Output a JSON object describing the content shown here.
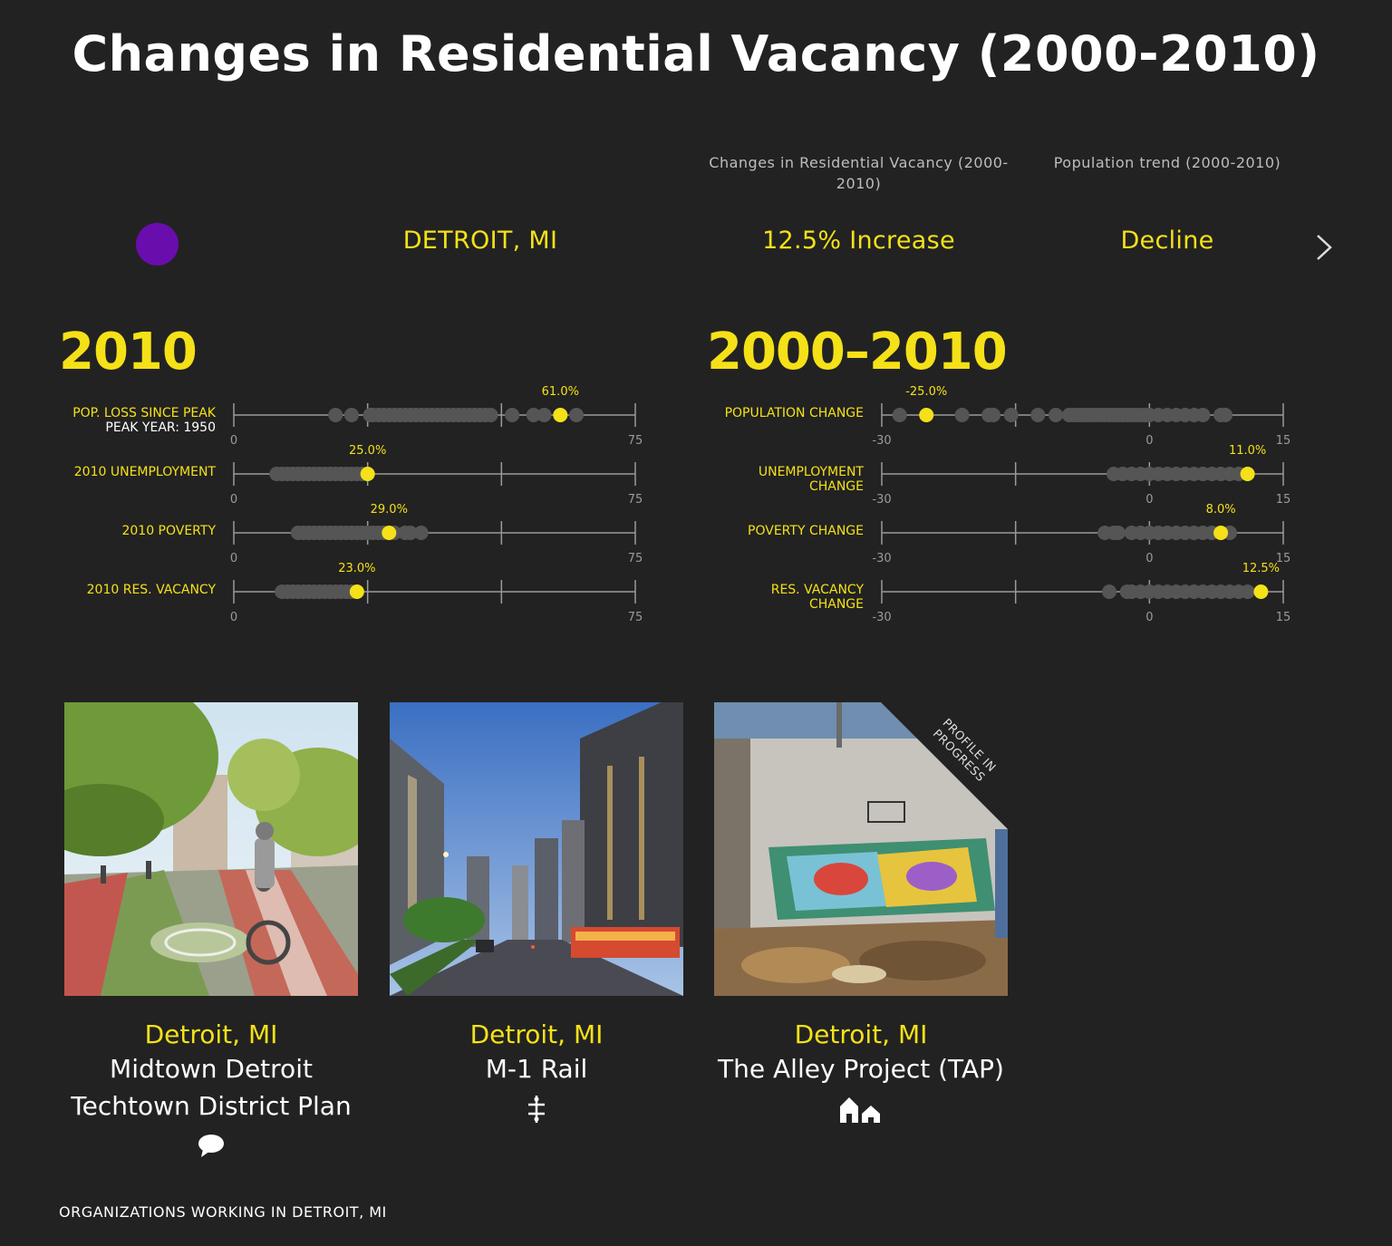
{
  "page_title": "Changes in Residential Vacancy (2000-2010)",
  "columns": {
    "vacancy_header": "Changes in Residential Vacancy (2000-2010)",
    "population_header": "Population trend (2000-2010)"
  },
  "selected_row": {
    "marker_color": "#6a0dad",
    "city": "DETROIT, MI",
    "vacancy_change": "12.5% Increase",
    "population_trend": "Decline"
  },
  "sections": {
    "left_title": "2010",
    "right_title": "2000–2010"
  },
  "chart_data": [
    {
      "type": "scatter",
      "title": "2010",
      "rows": [
        {
          "label": "POP. LOSS SINCE PEAK",
          "sublabel": "PEAK YEAR: 1950",
          "xlim": [
            0,
            75
          ],
          "highlight": 61.0,
          "highlight_label": "61.0%",
          "others": [
            19,
            22,
            25.5,
            26,
            27,
            28,
            29,
            30,
            31,
            32,
            33,
            34,
            35,
            36,
            37,
            38,
            39,
            40,
            41,
            42,
            43,
            44,
            45,
            46,
            47,
            48,
            52,
            56,
            58,
            64
          ]
        },
        {
          "label": "2010 UNEMPLOYMENT",
          "sublabel": "",
          "xlim": [
            0,
            75
          ],
          "highlight": 25.0,
          "highlight_label": "25.0%",
          "others": [
            8,
            9,
            10,
            11,
            12,
            13,
            14,
            15,
            16,
            17,
            18,
            19,
            20,
            21,
            22,
            23,
            24
          ]
        },
        {
          "label": "2010 POVERTY",
          "sublabel": "",
          "xlim": [
            0,
            75
          ],
          "highlight": 29.0,
          "highlight_label": "29.0%",
          "others": [
            12,
            13,
            14,
            15,
            16,
            17,
            18,
            19,
            20,
            21,
            22,
            23,
            24,
            25,
            26,
            27,
            28,
            30,
            32,
            33,
            35
          ]
        },
        {
          "label": "2010 RES. VACANCY",
          "sublabel": "",
          "xlim": [
            0,
            75
          ],
          "highlight": 23.0,
          "highlight_label": "23.0%",
          "others": [
            9,
            10,
            11,
            12,
            13,
            14,
            15,
            16,
            17,
            18,
            19,
            20,
            21,
            22
          ]
        }
      ]
    },
    {
      "type": "scatter",
      "title": "2000–2010",
      "rows": [
        {
          "label": "POPULATION CHANGE",
          "sublabel": "",
          "xlim": [
            -30,
            15
          ],
          "highlight": -25.0,
          "highlight_label": "-25.0%",
          "others": [
            -28,
            -21,
            -18,
            -17.5,
            -15.5,
            -12.5,
            -10.5,
            -9,
            -8.5,
            -8,
            -7.5,
            -7,
            -6.5,
            -6,
            -5.5,
            -5,
            -4.5,
            -4,
            -3.5,
            -3,
            -2.5,
            -2,
            -1.5,
            -1,
            -0.5,
            0,
            1,
            2,
            3,
            4,
            5,
            6,
            8,
            8.5
          ]
        },
        {
          "label": "UNEMPLOYMENT",
          "sublabel": "CHANGE",
          "xlim": [
            -30,
            15
          ],
          "highlight": 11.0,
          "highlight_label": "11.0%",
          "others": [
            -4,
            -3,
            -2,
            -1,
            0,
            1,
            2,
            3,
            4,
            5,
            6,
            7,
            8,
            9,
            10
          ]
        },
        {
          "label": "POVERTY CHANGE",
          "sublabel": "",
          "xlim": [
            -30,
            15
          ],
          "highlight": 8.0,
          "highlight_label": "8.0%",
          "others": [
            -5,
            -4,
            -3.5,
            -2,
            -1,
            0,
            1,
            2,
            3,
            4,
            5,
            6,
            7,
            9
          ]
        },
        {
          "label": "RES. VACANCY",
          "sublabel": "CHANGE",
          "xlim": [
            -30,
            15
          ],
          "highlight": 12.5,
          "highlight_label": "12.5%",
          "others": [
            -4.5,
            -2.5,
            -2,
            -1,
            0,
            1,
            2,
            3,
            4,
            5,
            6,
            7,
            8,
            9,
            10,
            11
          ]
        }
      ]
    }
  ],
  "colors": {
    "highlight": "#f5e118",
    "dots": "#555555",
    "axis": "#9a9a9a",
    "accent_text": "#f5e118"
  },
  "cards": [
    {
      "city": "Detroit, MI",
      "name_line1": "Midtown Detroit",
      "name_line2": "Techtown District Plan",
      "icon": "speech-bubble-icon"
    },
    {
      "city": "Detroit, MI",
      "name_line1": "M-1 Rail",
      "name_line2": "",
      "icon": "transit-icon"
    },
    {
      "city": "Detroit, MI",
      "name_line1": "The Alley Project (TAP)",
      "name_line2": "",
      "icon": "houses-icon",
      "ribbon": "PROFILE IN PROGRESS"
    }
  ],
  "footer": "ORGANIZATIONS WORKING IN DETROIT, MI"
}
